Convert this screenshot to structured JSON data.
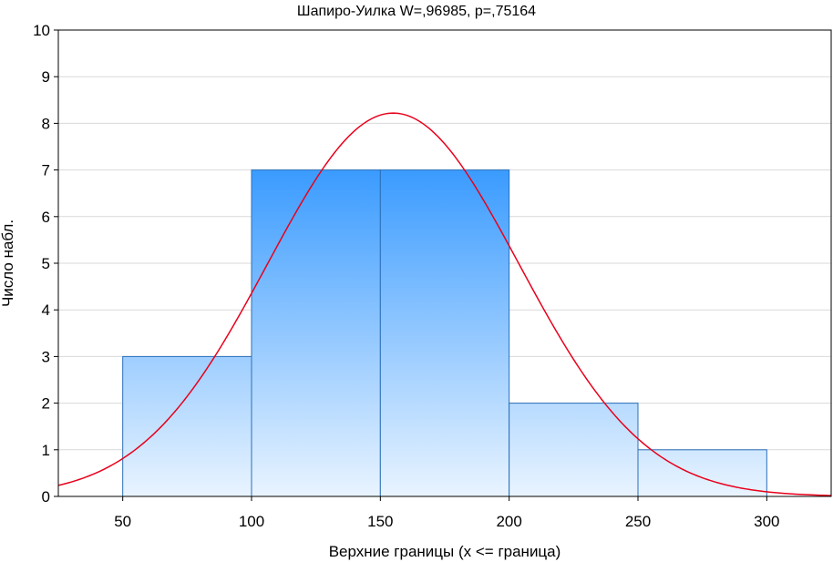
{
  "chart_data": {
    "type": "bar",
    "title": "Шапиро-Уилка W=,96985, p=,75164",
    "xlabel": "Верхние границы (x <= граница)",
    "ylabel": "Число набл.",
    "bins": [
      {
        "from": 50,
        "to": 100,
        "count": 3
      },
      {
        "from": 100,
        "to": 150,
        "count": 7
      },
      {
        "from": 150,
        "to": 200,
        "count": 7
      },
      {
        "from": 200,
        "to": 250,
        "count": 2
      },
      {
        "from": 250,
        "to": 300,
        "count": 1
      }
    ],
    "xlim": [
      25,
      325
    ],
    "ylim": [
      0,
      10
    ],
    "x_ticks": [
      50,
      100,
      150,
      200,
      250,
      300
    ],
    "y_ticks": [
      0,
      1,
      2,
      3,
      4,
      5,
      6,
      7,
      8,
      9,
      10
    ],
    "normal_curve": {
      "mean": 155,
      "sd": 48.8,
      "peak": 8.22,
      "color": "#e8001c"
    },
    "grid": true,
    "colors": {
      "bar_top": "#3a9bff",
      "bar_bottom": "#e9f4ff",
      "bar_edge": "#2b6fb8",
      "grid": "#d9d9d9"
    }
  }
}
